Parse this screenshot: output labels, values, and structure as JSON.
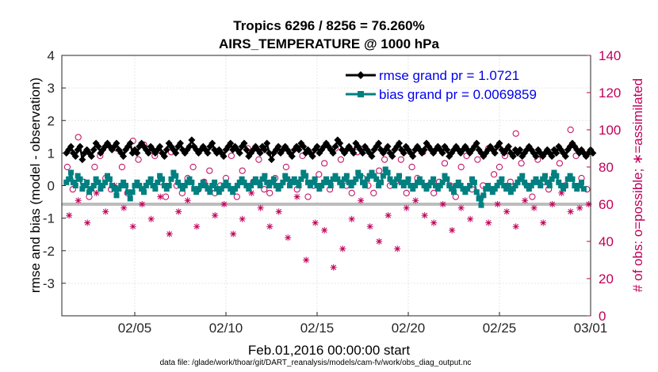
{
  "chart_data": {
    "type": "line",
    "title_line1": "Tropics 6296 / 8256 = 76.260%",
    "title_line2": "AIRS_TEMPERATURE @ 1000 hPa",
    "ylabel_left": "rmse and bias (model - observation)",
    "ylabel_right": "# of obs: o=possible; ∗=assimilated",
    "xlabel": "Feb.01,2016 00:00:00 start",
    "footnote": "data file: /glade/work/thoar/git/DART_reanalysis/models/cam-fv/work/obs_diag_output.nc",
    "ylim_left": [
      -4,
      4
    ],
    "ylim_right": [
      0,
      140
    ],
    "xlim": [
      0,
      29
    ],
    "left_ticks": [
      "-3",
      "-2",
      "-1",
      "0",
      "1",
      "2",
      "3",
      "4"
    ],
    "right_ticks": [
      "0",
      "20",
      "40",
      "60",
      "80",
      "100",
      "120",
      "140"
    ],
    "x_ticks": [
      {
        "label": "02/05",
        "day": 4
      },
      {
        "label": "02/10",
        "day": 9
      },
      {
        "label": "02/15",
        "day": 14
      },
      {
        "label": "02/20",
        "day": 19
      },
      {
        "label": "02/25",
        "day": 24
      },
      {
        "label": "03/01",
        "day": 29
      }
    ],
    "series": [
      {
        "name": "rmse",
        "legend": "rmse grand pr = 1.0721",
        "color": "#000000"
      },
      {
        "name": "bias",
        "legend": "bias grand pr = 0.0069859",
        "color": "#008080"
      },
      {
        "name": "possible_obs",
        "marker": "o",
        "color": "#c0005a"
      },
      {
        "name": "assimilated_obs",
        "marker": "*",
        "color": "#c0005a"
      }
    ],
    "sampling": {
      "start_day": 0.25,
      "step_days": 0.125,
      "count": 230
    },
    "rmse": [
      1.0,
      1.1,
      1.2,
      1.0,
      0.9,
      1.1,
      1.2,
      0.8,
      1.0,
      1.1,
      1.0,
      0.9,
      1.1,
      1.3,
      1.2,
      1.0,
      1.1,
      1.2,
      1.3,
      1.2,
      1.1,
      1.2,
      1.3,
      1.1,
      1.0,
      0.9,
      1.1,
      1.2,
      1.3,
      1.0,
      1.1,
      1.0,
      1.2,
      1.3,
      1.2,
      1.1,
      1.0,
      1.2,
      1.1,
      1.0,
      1.1,
      1.2,
      1.0,
      0.9,
      1.1,
      1.3,
      1.2,
      1.1,
      1.0,
      1.2,
      1.3,
      1.1,
      1.0,
      1.1,
      1.2,
      1.4,
      1.2,
      1.1,
      1.0,
      1.1,
      1.2,
      1.1,
      1.0,
      1.2,
      1.3,
      1.1,
      1.0,
      1.1,
      1.0,
      0.9,
      1.1,
      1.2,
      1.3,
      1.1,
      1.2,
      1.1,
      1.0,
      1.2,
      1.3,
      1.1,
      0.9,
      1.0,
      1.1,
      1.2,
      1.1,
      1.0,
      1.2,
      1.1,
      1.3,
      1.0,
      0.8,
      1.0,
      1.1,
      1.2,
      1.0,
      1.1,
      1.2,
      1.1,
      1.0,
      0.9,
      1.1,
      1.2,
      1.1,
      1.3,
      1.2,
      1.0,
      1.1,
      1.0,
      0.9,
      1.1,
      1.2,
      1.0,
      1.1,
      1.2,
      1.3,
      1.2,
      1.1,
      1.0,
      1.2,
      1.4,
      1.3,
      1.1,
      1.0,
      1.1,
      1.2,
      1.1,
      1.0,
      1.3,
      1.2,
      1.1,
      1.0,
      1.2,
      1.1,
      1.0,
      0.9,
      1.1,
      1.2,
      1.3,
      1.1,
      1.0,
      1.1,
      1.2,
      1.0,
      0.9,
      1.1,
      1.2,
      1.3,
      1.1,
      1.0,
      1.2,
      1.1,
      1.0,
      0.9,
      1.1,
      1.2,
      1.1,
      1.0,
      1.1,
      1.3,
      1.2,
      1.1,
      1.0,
      1.1,
      1.2,
      1.1,
      1.0,
      1.2,
      1.1,
      0.9,
      1.0,
      1.1,
      1.2,
      1.1,
      1.0,
      1.1,
      1.2,
      1.1,
      1.0,
      1.1,
      1.2,
      1.3,
      1.1,
      1.0,
      0.9,
      1.0,
      1.1,
      1.2,
      1.1,
      1.0,
      1.2,
      1.3,
      1.1,
      1.0,
      1.1,
      1.2,
      1.0,
      0.9,
      1.1,
      1.0,
      1.1,
      0.9,
      1.0,
      1.1,
      1.2,
      1.1,
      1.0,
      0.9,
      1.1,
      1.0,
      0.9,
      1.0,
      1.1,
      1.0,
      0.9,
      1.1,
      1.0,
      1.2,
      1.1,
      1.0,
      0.9,
      1.1,
      1.2,
      1.3,
      1.2,
      1.1,
      1.0,
      1.1,
      1.0,
      0.9,
      1.0,
      1.1,
      1.0
    ],
    "bias": [
      0.1,
      0.2,
      0.4,
      0.1,
      0.0,
      0.3,
      0.2,
      -0.1,
      0.0,
      0.1,
      -0.2,
      -0.1,
      0.0,
      0.2,
      0.1,
      -0.1,
      0.0,
      0.1,
      0.3,
      0.2,
      0.0,
      -0.1,
      -0.3,
      -0.1,
      0.0,
      0.1,
      0.0,
      -0.2,
      -0.4,
      -0.2,
      0.0,
      0.1,
      0.0,
      -0.1,
      -0.2,
      0.0,
      0.1,
      0.2,
      0.0,
      -0.1,
      0.1,
      0.3,
      0.2,
      0.0,
      -0.1,
      0.0,
      0.2,
      0.4,
      0.3,
      0.1,
      0.0,
      -0.1,
      0.0,
      0.1,
      0.2,
      0.1,
      -0.1,
      -0.2,
      -0.1,
      0.0,
      0.1,
      0.0,
      -0.1,
      -0.2,
      0.0,
      0.1,
      -0.1,
      -0.2,
      -0.1,
      0.0,
      0.1,
      0.0,
      -0.1,
      -0.2,
      -0.1,
      0.0,
      0.1,
      0.2,
      0.1,
      0.0,
      -0.1,
      0.0,
      0.1,
      0.2,
      0.1,
      0.0,
      0.2,
      0.3,
      0.1,
      0.0,
      0.1,
      0.2,
      0.0,
      -0.1,
      0.0,
      0.1,
      0.3,
      0.2,
      0.0,
      0.1,
      0.2,
      0.1,
      0.0,
      0.2,
      0.4,
      0.3,
      0.1,
      0.0,
      0.1,
      0.2,
      0.0,
      -0.1,
      0.0,
      0.1,
      0.2,
      0.1,
      0.0,
      0.2,
      0.3,
      0.2,
      0.1,
      0.0,
      0.2,
      0.3,
      0.1,
      0.0,
      0.1,
      0.2,
      0.4,
      0.3,
      0.1,
      0.0,
      0.2,
      0.3,
      0.4,
      0.3,
      0.2,
      0.0,
      0.1,
      0.3,
      0.5,
      0.4,
      0.2,
      0.1,
      0.0,
      0.2,
      0.3,
      0.1,
      0.0,
      0.1,
      0.2,
      0.0,
      -0.1,
      0.0,
      0.1,
      0.2,
      0.1,
      0.0,
      -0.1,
      0.0,
      0.1,
      0.2,
      0.0,
      -0.1,
      0.0,
      0.1,
      0.3,
      0.2,
      0.0,
      -0.1,
      -0.2,
      0.0,
      0.1,
      0.0,
      -0.1,
      -0.2,
      -0.1,
      0.0,
      0.2,
      0.1,
      -0.2,
      -0.4,
      -0.6,
      -0.3,
      -0.1,
      0.0,
      -0.1,
      -0.2,
      -0.1,
      0.0,
      0.1,
      0.2,
      0.0,
      -0.1,
      0.0,
      -0.2,
      -0.1,
      0.0,
      0.1,
      0.2,
      0.3,
      0.1,
      0.0,
      -0.1,
      0.0,
      0.1,
      0.2,
      0.1,
      0.0,
      0.2,
      0.3,
      0.1,
      0.0,
      0.2,
      0.4,
      0.3,
      0.1,
      0.0,
      -0.1,
      0.0,
      0.2,
      0.3,
      0.2,
      0.0,
      -0.1,
      0.0,
      0.1,
      -0.1
    ],
    "possible_obs_days": [
      0.3,
      0.6,
      0.9,
      1.2,
      1.5,
      1.8,
      2.1,
      2.4,
      2.7,
      3.0,
      3.3,
      3.6,
      3.9,
      4.2,
      4.5,
      4.8,
      5.1,
      5.4,
      5.7,
      6.0,
      6.3,
      6.6,
      6.9,
      7.2,
      7.5,
      7.8,
      8.1,
      8.4,
      8.7,
      9.0,
      9.3,
      9.6,
      9.9,
      10.2,
      10.5,
      10.8,
      11.1,
      11.4,
      11.7,
      12.0,
      12.3,
      12.6,
      12.9,
      13.2,
      13.5,
      13.8,
      14.1,
      14.4,
      14.7,
      15.0,
      15.3,
      15.6,
      15.9,
      16.2,
      16.5,
      16.8,
      17.1,
      17.4,
      17.7,
      18.0,
      18.3,
      18.6,
      18.9,
      19.2,
      19.5,
      19.8,
      20.1,
      20.4,
      20.7,
      21.0,
      21.3,
      21.6,
      21.9,
      22.2,
      22.5,
      22.8,
      23.1,
      23.4,
      23.7,
      24.0,
      24.3,
      24.6,
      24.9,
      25.2,
      25.5,
      25.8,
      26.1,
      26.4,
      26.7,
      27.0,
      27.3,
      27.6,
      27.9,
      28.2,
      28.5,
      28.8
    ],
    "possible_obs": [
      80,
      68,
      96,
      72,
      64,
      80,
      86,
      74,
      68,
      90,
      80,
      66,
      94,
      84,
      92,
      90,
      86,
      72,
      64,
      88,
      70,
      66,
      74,
      80,
      68,
      72,
      78,
      66,
      70,
      74,
      86,
      64,
      78,
      90,
      72,
      84,
      68,
      66,
      74,
      88,
      80,
      72,
      68,
      86,
      64,
      70,
      76,
      82,
      68,
      90,
      84,
      70,
      66,
      88,
      74,
      70,
      66,
      78,
      84,
      70,
      72,
      84,
      66,
      80,
      74,
      88,
      70,
      66,
      72,
      82,
      70,
      64,
      80,
      86,
      68,
      84,
      70,
      90,
      76,
      80,
      86,
      72,
      98,
      82,
      70,
      64,
      84,
      72,
      68,
      76,
      82,
      70,
      100,
      86,
      74,
      68
    ],
    "assimilated_obs_days": [
      0.4,
      0.9,
      1.4,
      1.9,
      2.4,
      2.9,
      3.4,
      3.9,
      4.4,
      4.9,
      5.4,
      5.9,
      6.4,
      6.9,
      7.4,
      7.9,
      8.4,
      8.9,
      9.4,
      9.9,
      10.4,
      10.9,
      11.4,
      11.9,
      12.4,
      12.9,
      13.4,
      13.9,
      14.4,
      14.9,
      15.4,
      15.9,
      16.4,
      16.9,
      17.4,
      17.9,
      18.4,
      18.9,
      19.4,
      19.9,
      20.4,
      20.9,
      21.4,
      21.9,
      22.4,
      22.9,
      23.4,
      23.9,
      24.4,
      24.9,
      25.4,
      25.9,
      26.4,
      26.9,
      27.4,
      27.9,
      28.4,
      28.9
    ],
    "assimilated_obs": [
      54,
      62,
      50,
      66,
      56,
      70,
      58,
      48,
      60,
      52,
      64,
      44,
      56,
      62,
      48,
      70,
      54,
      60,
      44,
      52,
      66,
      58,
      48,
      56,
      42,
      64,
      30,
      50,
      46,
      26,
      36,
      52,
      62,
      48,
      40,
      54,
      36,
      58,
      62,
      54,
      50,
      60,
      46,
      58,
      52,
      64,
      50,
      60,
      56,
      48,
      62,
      58,
      50,
      60,
      66,
      56,
      58,
      60
    ]
  }
}
